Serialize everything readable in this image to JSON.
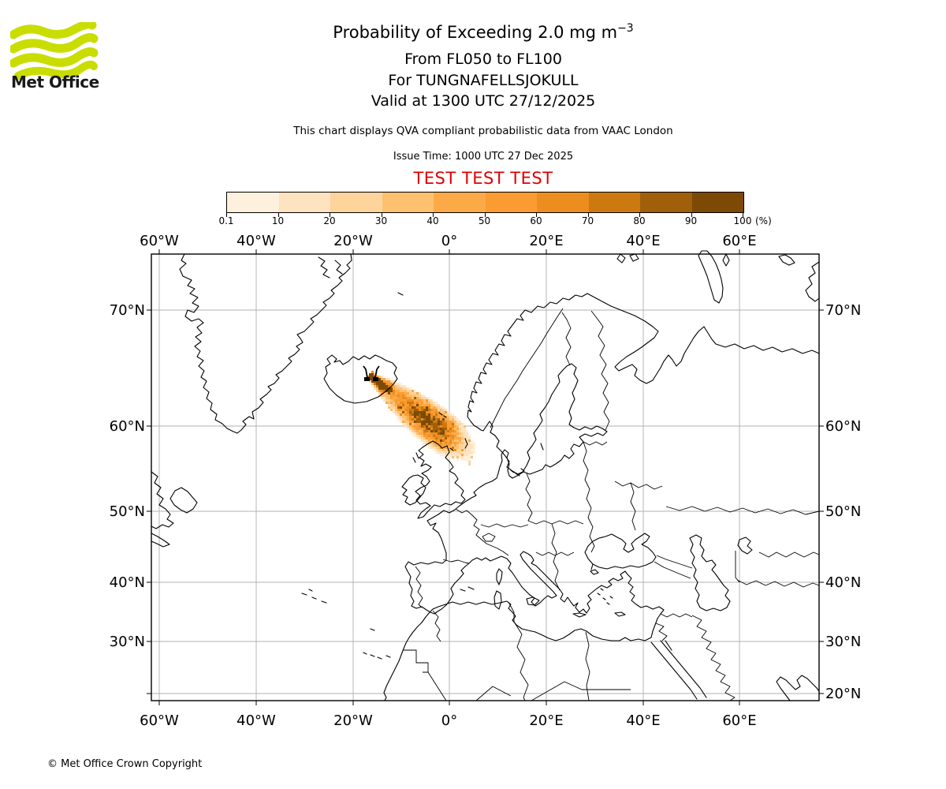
{
  "header": {
    "logo_text": "Met Office",
    "logo_green": "#c9dd00",
    "title_main": "Probability of Exceeding 2.0 mg m",
    "title_sup": "−3",
    "subtitle_level": "From FL050 to FL100",
    "subtitle_volcano": "For TUNGNAFELLSJOKULL",
    "subtitle_valid": "Valid at 1300 UTC 27/12/2025",
    "qva_note": "This chart displays QVA compliant probabilistic data from VAAC London",
    "issue_time": "Issue Time: 1000 UTC 27 Dec 2025",
    "test_banner": "TEST TEST TEST",
    "test_color": "#dd0000"
  },
  "colorbar": {
    "tick_labels": [
      "0.1",
      "10",
      "20",
      "30",
      "40",
      "50",
      "60",
      "70",
      "80",
      "90",
      "100"
    ],
    "unit": "(%)",
    "colors": [
      "#fdf0dc",
      "#fde3bf",
      "#fdd49b",
      "#fdc170",
      "#fcaa48",
      "#fa9c32",
      "#ec8d20",
      "#cc7910",
      "#a05f0a",
      "#7c4a05"
    ]
  },
  "map": {
    "top_labels": [
      "60°W",
      "40°W",
      "20°W",
      "0°",
      "20°E",
      "40°E",
      "60°E"
    ],
    "bottom_labels": [
      "60°W",
      "40°W",
      "20°W",
      "0°",
      "20°E",
      "40°E",
      "60°E"
    ],
    "left_labels": [
      "70°N",
      "60°N",
      "50°N",
      "40°N",
      "30°N"
    ],
    "right_labels": [
      "70°N",
      "60°N",
      "50°N",
      "40°N",
      "30°N",
      "20°N"
    ]
  },
  "chart_data": {
    "type": "heatmap",
    "title": "Probability of Exceeding 2.0 mg m−3",
    "flight_levels": "FL050 to FL100",
    "volcano": {
      "name": "TUNGNAFELLSJOKULL",
      "lat": 64.7,
      "lon": -17.9
    },
    "valid_time": "1300 UTC 27/12/2025",
    "issue_time": "1000 UTC 27 Dec 2025",
    "source": "VAAC London",
    "probability_scale_percent": [
      0.1,
      10,
      20,
      30,
      40,
      50,
      60,
      70,
      80,
      90,
      100
    ],
    "lon_gridlines_deg": [
      -60,
      -40,
      -20,
      0,
      20,
      40,
      60
    ],
    "lat_gridlines_deg": [
      70,
      60,
      50,
      40,
      30,
      20
    ],
    "map_extent": {
      "lon_min": -62,
      "lon_max": 72,
      "lat_min": 19,
      "lat_max": 76
    },
    "plume": {
      "from": {
        "lat": 64.7,
        "lon": -17.9
      },
      "to": {
        "lat": 58.6,
        "lon": -1.5
      },
      "description": "Ash plume extends southeast from the vent in central Iceland across the Norwegian Sea to northern Scotland; highest probabilities (80-100%) along the central axis, diffuse low-probability fringe (0.1-20%) at the edges."
    }
  },
  "footer": {
    "copyright": "© Met Office Crown Copyright"
  }
}
